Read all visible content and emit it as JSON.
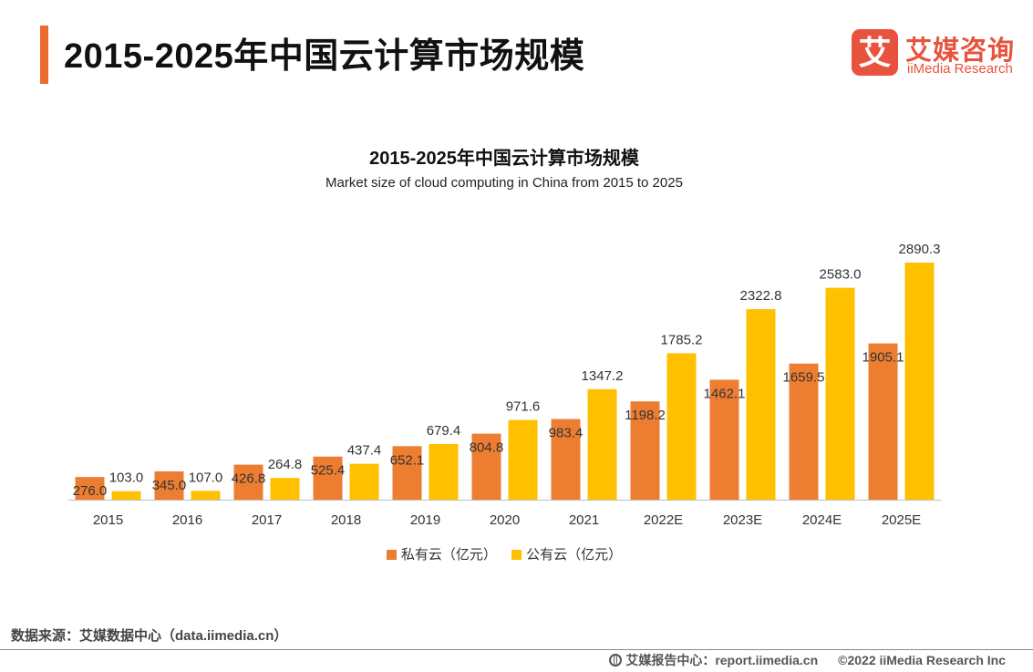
{
  "header": {
    "title": "2015-2025年中国云计算市场规模"
  },
  "logo": {
    "mark": "艾",
    "name_cn": "艾媒咨询",
    "name_en": "iiMedia Research"
  },
  "colors": {
    "accent": "#ed6b2d",
    "private_cloud": "#ed7d31",
    "public_cloud": "#ffc000",
    "brand": "#e8533d"
  },
  "chart_data": {
    "type": "bar",
    "title": "2015-2025年中国云计算市场规模",
    "subtitle": "Market size of cloud computing in China from 2015 to 2025",
    "categories": [
      "2015",
      "2016",
      "2017",
      "2018",
      "2019",
      "2020",
      "2021",
      "2022E",
      "2023E",
      "2024E",
      "2025E"
    ],
    "series": [
      {
        "name": "私有云（亿元）",
        "color": "#ed7d31",
        "values": [
          276.0,
          345.0,
          426.8,
          525.4,
          652.1,
          804.8,
          983.4,
          1198.2,
          1462.1,
          1659.5,
          1905.1
        ],
        "labels": [
          "276.0",
          "345.0",
          "426.8",
          "525.4",
          "652.1",
          "804.8",
          "983.4",
          "1198.2",
          "1462.1",
          "1659.5",
          "1905.1"
        ]
      },
      {
        "name": "公有云（亿元）",
        "color": "#ffc000",
        "values": [
          103.0,
          107.0,
          264.8,
          437.4,
          679.4,
          971.6,
          1347.2,
          1785.2,
          2322.8,
          2583.0,
          2890.3
        ],
        "labels": [
          "103.0",
          "107.0",
          "264.8",
          "437.4",
          "679.4",
          "971.6",
          "1347.2",
          "1785.2",
          "2322.8",
          "2583.0",
          "2890.3"
        ]
      }
    ],
    "ylim": [
      0,
      2890.3
    ],
    "xlabel": "",
    "ylabel": "",
    "grid": false,
    "legend": "bottom"
  },
  "footer": {
    "source": "数据来源：艾媒数据中心（data.iimedia.cn）",
    "report_center": "艾媒报告中心：report.iimedia.cn",
    "copyright": "©2022 iiMedia Research Inc"
  }
}
